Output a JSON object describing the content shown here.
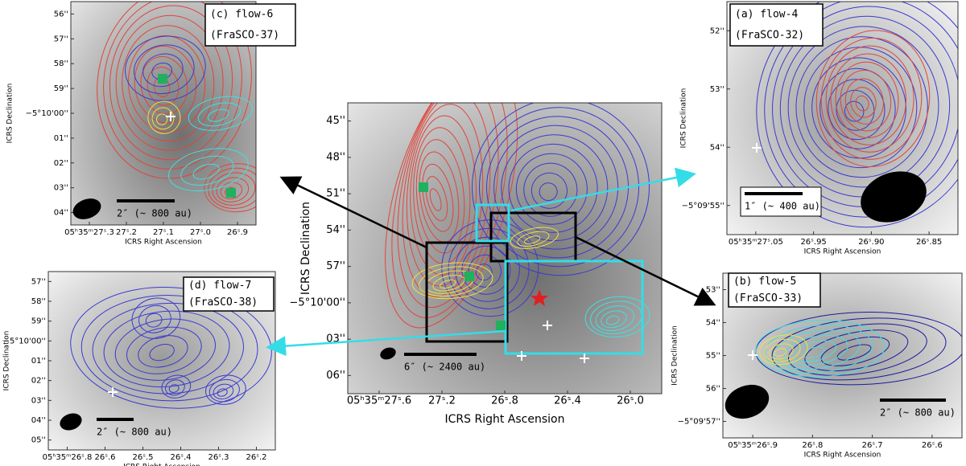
{
  "panels": [
    {
      "label": [
        "(c) flow-6",
        "(FraSCO-37)"
      ],
      "x_axis_title": "ICRS Right Ascension",
      "y_axis_title": "ICRS Declination",
      "xticks": [
        "05ʰ35ᵐ27ˢ.3",
        "27ˢ.2",
        "27ˢ.1",
        "27ˢ.0",
        "26ˢ.9"
      ],
      "yticks": [
        "56''",
        "57''",
        "58''",
        "59''",
        "−5°10'00''",
        "01''",
        "02''",
        "03''",
        "04''"
      ],
      "scale_bar": "2″ (~ 800 au)"
    },
    {
      "label": null,
      "x_axis_title": "ICRS Right Ascension",
      "y_axis_title": "ICRS Declination",
      "xticks": [
        "05ʰ35ᵐ27ˢ.6",
        "27ˢ.2",
        "26ˢ.8",
        "26ˢ.4",
        "26ˢ.0"
      ],
      "yticks": [
        "45''",
        "48''",
        "51''",
        "54''",
        "57''",
        "−5°10'00''",
        "03''",
        "06''"
      ],
      "scale_bar": "6″ (~ 2400 au)"
    },
    {
      "label": [
        "(a) flow-4",
        "(FraSCO-32)"
      ],
      "x_axis_title": "ICRS Right Ascension",
      "y_axis_title": "ICRS Declination",
      "xticks": [
        "05ʰ35ᵐ27ˢ.05",
        "26ˢ.95",
        "26ˢ.90",
        "26ˢ.85"
      ],
      "yticks": [
        "52''",
        "53''",
        "54''",
        "−5°09'55''"
      ],
      "scale_bar": "1″ (~ 400 au)"
    },
    {
      "label": [
        "(b) flow-5",
        "(FraSCO-33)"
      ],
      "x_axis_title": "ICRS Right Ascension",
      "y_axis_title": "ICRS Declination",
      "xticks": [
        "05ʰ35ᵐ26ˢ.9",
        "26ˢ.8",
        "26ˢ.7",
        "26ˢ.6"
      ],
      "yticks": [
        "53''",
        "54''",
        "55''",
        "56''",
        "−5°09'57''"
      ],
      "scale_bar": "2″ (~ 800 au)"
    },
    {
      "label": [
        "(d) flow-7",
        "(FraSCO-38)"
      ],
      "x_axis_title": "ICRS Right Ascension",
      "y_axis_title": "ICRS Declination",
      "xticks": [
        "05ʰ35ᵐ26ˢ.8",
        "26ˢ.6",
        "26ˢ.5",
        "26ˢ.4",
        "26ˢ.3",
        "26ˢ.2"
      ],
      "yticks": [
        "57''",
        "58''",
        "59''",
        "−5°10'00''",
        "01''",
        "02''",
        "03''",
        "04''",
        "05''"
      ],
      "scale_bar": "2″ (~ 800 au)"
    }
  ]
}
